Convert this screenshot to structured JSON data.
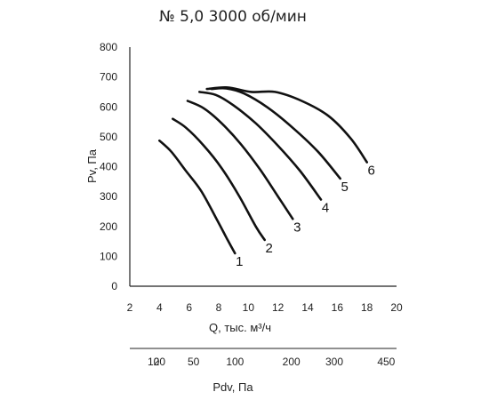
{
  "chart_data": {
    "type": "line",
    "title": "№ 5,0 3000 об/мин",
    "xlabel": "Q, тыс. м³/ч",
    "ylabel": "Pv, Па",
    "xlim": [
      2,
      20
    ],
    "ylim": [
      0,
      800
    ],
    "x_ticks": [
      2,
      4,
      6,
      8,
      10,
      12,
      14,
      16,
      18,
      20
    ],
    "y_ticks": [
      0,
      100,
      200,
      300,
      400,
      500,
      600,
      700,
      800
    ],
    "grid": false,
    "series": [
      {
        "name": "1",
        "points": [
          [
            4.0,
            487
          ],
          [
            4.8,
            450
          ],
          [
            5.8,
            385
          ],
          [
            6.8,
            320
          ],
          [
            7.8,
            230
          ],
          [
            8.6,
            155
          ],
          [
            9.1,
            110
          ]
        ]
      },
      {
        "name": "2",
        "points": [
          [
            4.9,
            560
          ],
          [
            5.8,
            530
          ],
          [
            7.0,
            470
          ],
          [
            8.2,
            395
          ],
          [
            9.4,
            300
          ],
          [
            10.5,
            200
          ],
          [
            11.1,
            155
          ]
        ]
      },
      {
        "name": "3",
        "points": [
          [
            5.9,
            620
          ],
          [
            7.0,
            595
          ],
          [
            8.2,
            545
          ],
          [
            9.5,
            475
          ],
          [
            10.8,
            390
          ],
          [
            12.0,
            300
          ],
          [
            13.0,
            225
          ]
        ]
      },
      {
        "name": "4",
        "points": [
          [
            6.7,
            650
          ],
          [
            7.8,
            640
          ],
          [
            9.0,
            605
          ],
          [
            10.5,
            545
          ],
          [
            12.0,
            470
          ],
          [
            13.5,
            385
          ],
          [
            14.9,
            290
          ]
        ]
      },
      {
        "name": "5",
        "points": [
          [
            7.5,
            660
          ],
          [
            8.5,
            662
          ],
          [
            9.7,
            645
          ],
          [
            11.3,
            598
          ],
          [
            13.0,
            530
          ],
          [
            14.7,
            450
          ],
          [
            16.2,
            360
          ]
        ]
      },
      {
        "name": "6",
        "points": [
          [
            7.2,
            660
          ],
          [
            8.6,
            665
          ],
          [
            10.2,
            650
          ],
          [
            11.8,
            650
          ],
          [
            13.6,
            620
          ],
          [
            15.4,
            570
          ],
          [
            16.9,
            495
          ],
          [
            18.0,
            415
          ]
        ]
      }
    ],
    "secondary_axis": {
      "label": "Pdv, Па",
      "ticks": [
        {
          "label": "10",
          "q": 3.6
        },
        {
          "label": "20",
          "q": 4.0
        },
        {
          "label": "50",
          "q": 6.3
        },
        {
          "label": "100",
          "q": 9.1
        },
        {
          "label": "200",
          "q": 12.9
        },
        {
          "label": "300",
          "q": 15.8
        },
        {
          "label": "450",
          "q": 19.3
        }
      ]
    }
  }
}
